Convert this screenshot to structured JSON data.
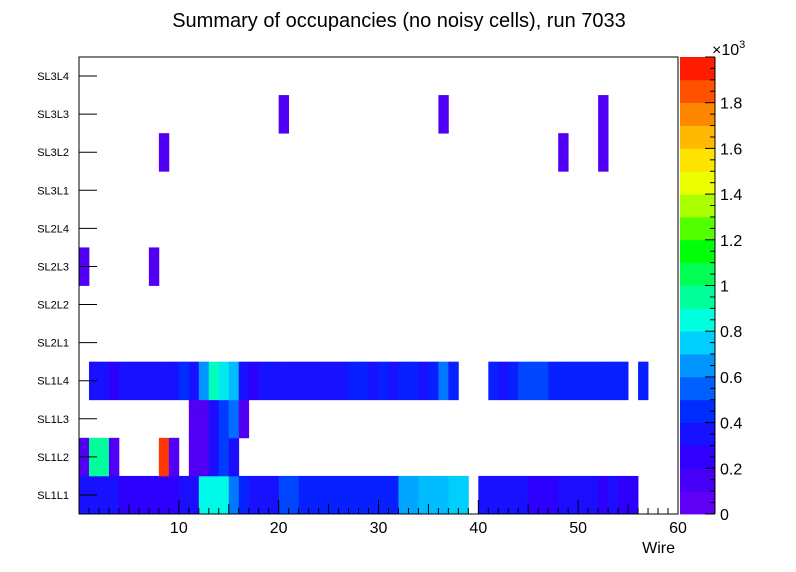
{
  "chart_data": {
    "type": "heatmap",
    "title": "Summary of occupancies (no noisy cells), run 7033",
    "xlabel": "Wire",
    "ylabel": "",
    "x_range": [
      0,
      60
    ],
    "x_ticks": [
      10,
      20,
      30,
      40,
      50,
      60
    ],
    "y_categories": [
      "SL1L1",
      "SL1L2",
      "SL1L3",
      "SL1L4",
      "SL2L1",
      "SL2L2",
      "SL2L3",
      "SL2L4",
      "SL3L1",
      "SL3L2",
      "SL3L3",
      "SL3L4"
    ],
    "z_range": [
      0,
      2000
    ],
    "colorbar_ticks": [
      0,
      0.2,
      0.4,
      0.6,
      0.8,
      1,
      1.2,
      1.4,
      1.6,
      1.8
    ],
    "colorbar_tick_labels": [
      "0",
      "0.2",
      "0.4",
      "0.6",
      "0.8",
      "1",
      "1.2",
      "1.4",
      "1.6",
      "1.8"
    ],
    "colorbar_multiplier": "×10",
    "colorbar_exponent": "3",
    "rows": {
      "SL1L1": [
        [
          1,
          350
        ],
        [
          2,
          350
        ],
        [
          3,
          350
        ],
        [
          4,
          350
        ],
        [
          5,
          260
        ],
        [
          6,
          260
        ],
        [
          7,
          260
        ],
        [
          8,
          260
        ],
        [
          9,
          260
        ],
        [
          10,
          260
        ],
        [
          11,
          330
        ],
        [
          12,
          330
        ],
        [
          13,
          830
        ],
        [
          14,
          830
        ],
        [
          15,
          830
        ],
        [
          16,
          600
        ],
        [
          17,
          420
        ],
        [
          18,
          350
        ],
        [
          19,
          350
        ],
        [
          20,
          350
        ],
        [
          21,
          500
        ],
        [
          22,
          500
        ],
        [
          23,
          410
        ],
        [
          24,
          410
        ],
        [
          25,
          410
        ],
        [
          26,
          410
        ],
        [
          27,
          410
        ],
        [
          28,
          410
        ],
        [
          29,
          410
        ],
        [
          30,
          410
        ],
        [
          31,
          410
        ],
        [
          32,
          410
        ],
        [
          33,
          680
        ],
        [
          34,
          680
        ],
        [
          35,
          720
        ],
        [
          36,
          720
        ],
        [
          37,
          720
        ],
        [
          38,
          750
        ],
        [
          39,
          750
        ],
        [
          41,
          350
        ],
        [
          42,
          350
        ],
        [
          43,
          350
        ],
        [
          44,
          350
        ],
        [
          45,
          350
        ],
        [
          46,
          260
        ],
        [
          47,
          260
        ],
        [
          48,
          260
        ],
        [
          49,
          330
        ],
        [
          50,
          330
        ],
        [
          51,
          330
        ],
        [
          52,
          330
        ],
        [
          53,
          260
        ],
        [
          54,
          330
        ],
        [
          55,
          260
        ],
        [
          56,
          260
        ]
      ],
      "SL1L2": [
        [
          1,
          100
        ],
        [
          2,
          950
        ],
        [
          3,
          950
        ],
        [
          4,
          100
        ],
        [
          9,
          1900
        ],
        [
          10,
          100
        ],
        [
          12,
          100
        ],
        [
          13,
          100
        ],
        [
          14,
          330
        ],
        [
          15,
          480
        ],
        [
          16,
          330
        ]
      ],
      "SL1L3": [
        [
          12,
          100
        ],
        [
          13,
          100
        ],
        [
          14,
          330
        ],
        [
          15,
          480
        ],
        [
          16,
          580
        ],
        [
          17,
          100
        ]
      ],
      "SL1L4": [
        [
          2,
          350
        ],
        [
          3,
          350
        ],
        [
          4,
          260
        ],
        [
          5,
          350
        ],
        [
          6,
          350
        ],
        [
          7,
          350
        ],
        [
          8,
          350
        ],
        [
          9,
          350
        ],
        [
          10,
          350
        ],
        [
          11,
          450
        ],
        [
          12,
          350
        ],
        [
          13,
          650
        ],
        [
          14,
          900
        ],
        [
          15,
          800
        ],
        [
          16,
          720
        ],
        [
          17,
          350
        ],
        [
          18,
          260
        ],
        [
          19,
          350
        ],
        [
          20,
          350
        ],
        [
          21,
          350
        ],
        [
          22,
          350
        ],
        [
          23,
          350
        ],
        [
          24,
          350
        ],
        [
          25,
          350
        ],
        [
          26,
          350
        ],
        [
          27,
          350
        ],
        [
          28,
          410
        ],
        [
          29,
          410
        ],
        [
          30,
          350
        ],
        [
          31,
          410
        ],
        [
          32,
          350
        ],
        [
          33,
          410
        ],
        [
          34,
          410
        ],
        [
          35,
          350
        ],
        [
          36,
          410
        ],
        [
          37,
          600
        ],
        [
          38,
          410
        ],
        [
          42,
          410
        ],
        [
          43,
          350
        ],
        [
          44,
          410
        ],
        [
          45,
          500
        ],
        [
          46,
          500
        ],
        [
          47,
          500
        ],
        [
          48,
          410
        ],
        [
          49,
          410
        ],
        [
          50,
          410
        ],
        [
          51,
          410
        ],
        [
          52,
          410
        ],
        [
          53,
          410
        ],
        [
          54,
          410
        ],
        [
          55,
          410
        ],
        [
          57,
          410
        ]
      ],
      "SL2L1": [],
      "SL2L2": [],
      "SL2L3": [
        [
          1,
          100
        ],
        [
          8,
          100
        ]
      ],
      "SL2L4": [],
      "SL3L1": [],
      "SL3L2": [
        [
          9,
          100
        ],
        [
          49,
          100
        ],
        [
          53,
          100
        ]
      ],
      "SL3L3": [
        [
          21,
          100
        ],
        [
          37,
          100
        ],
        [
          53,
          100
        ]
      ],
      "SL3L4": []
    }
  }
}
